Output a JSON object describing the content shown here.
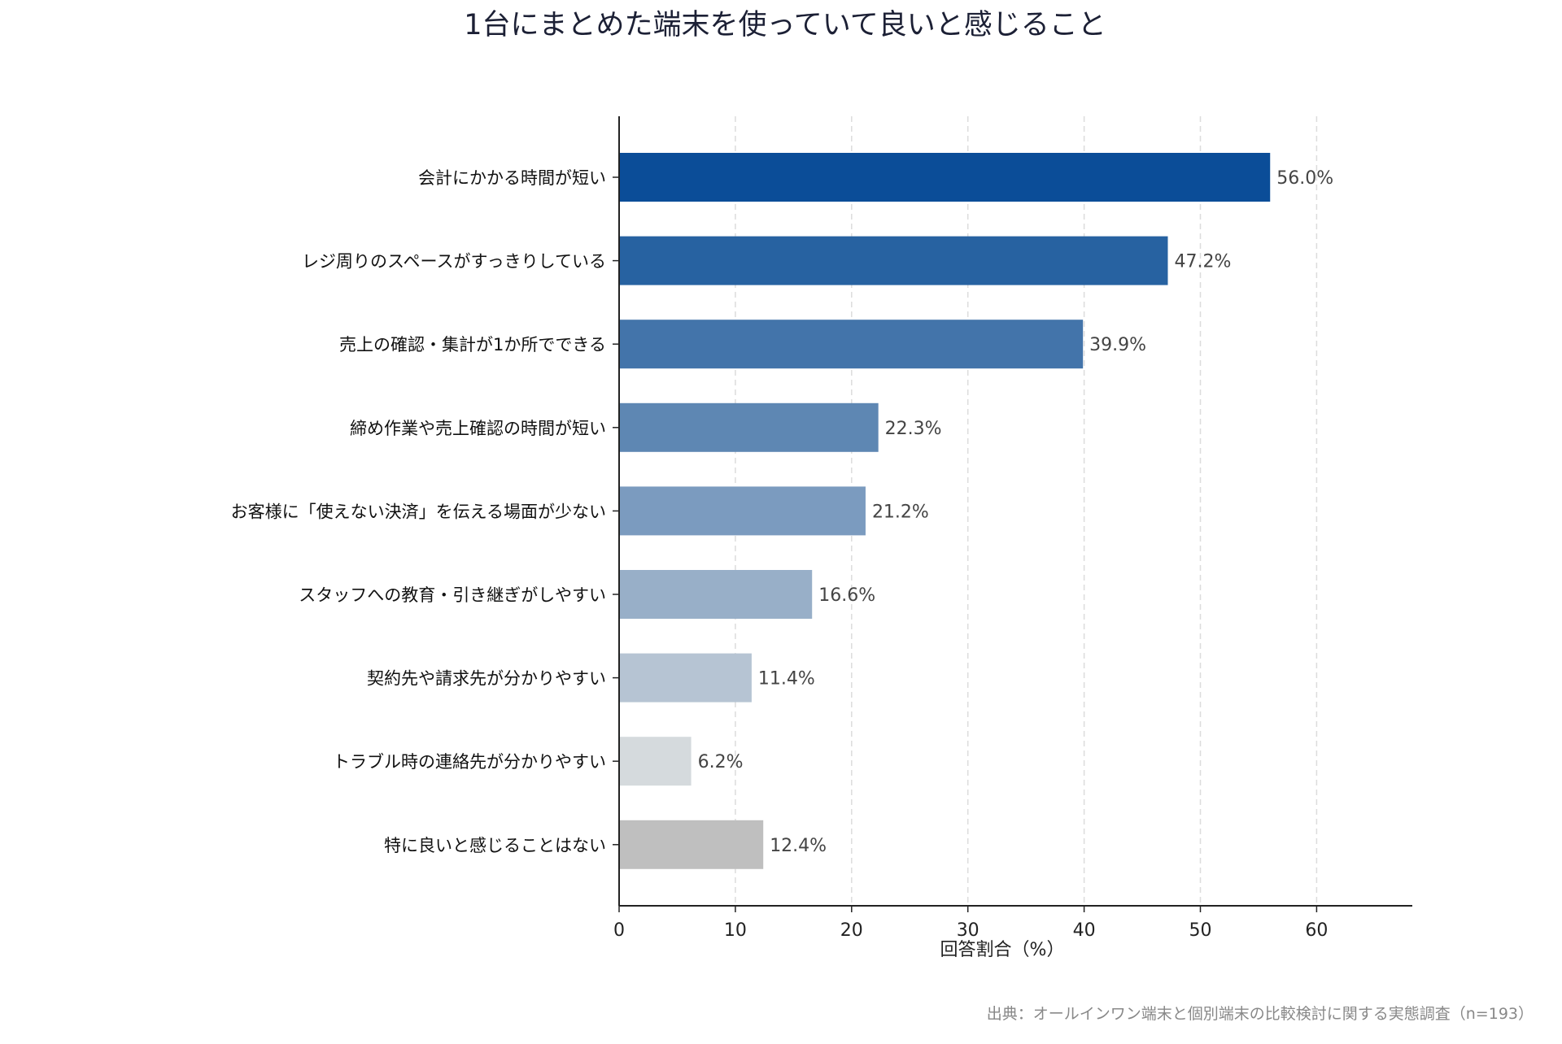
{
  "chart_data": {
    "type": "bar",
    "orientation": "horizontal",
    "title": "1台にまとめた端末を使っていて良いと感じること",
    "xlabel": "回答割合（%）",
    "ylabel": "",
    "xlim": [
      0,
      68
    ],
    "xticks": [
      0,
      10,
      20,
      30,
      40,
      50,
      60
    ],
    "grid": "x-dashed",
    "value_suffix": "%",
    "categories": [
      "会計にかかる時間が短い",
      "レジ周りのスペースがすっきりしている",
      "売上の確認・集計が1か所でできる",
      "締め作業や売上確認の時間が短い",
      "お客様に「使えない決済」を伝える場面が少ない",
      "スタッフへの教育・引き継ぎがしやすい",
      "契約先や請求先が分かりやすい",
      "トラブル時の連絡先が分かりやすい",
      "特に良いと感じることはない"
    ],
    "values": [
      56.0,
      47.2,
      39.9,
      22.3,
      21.2,
      16.6,
      11.4,
      6.2,
      12.4
    ],
    "colors": [
      "#0b4d98",
      "#2762a1",
      "#4374aa",
      "#5e87b3",
      "#7b9bbf",
      "#98afc8",
      "#b6c4d3",
      "#d5dadd",
      "#bfbfbf"
    ]
  },
  "source": "出典：オールインワン端末と個別端末の比較検討に関する実態調査（n=193）"
}
